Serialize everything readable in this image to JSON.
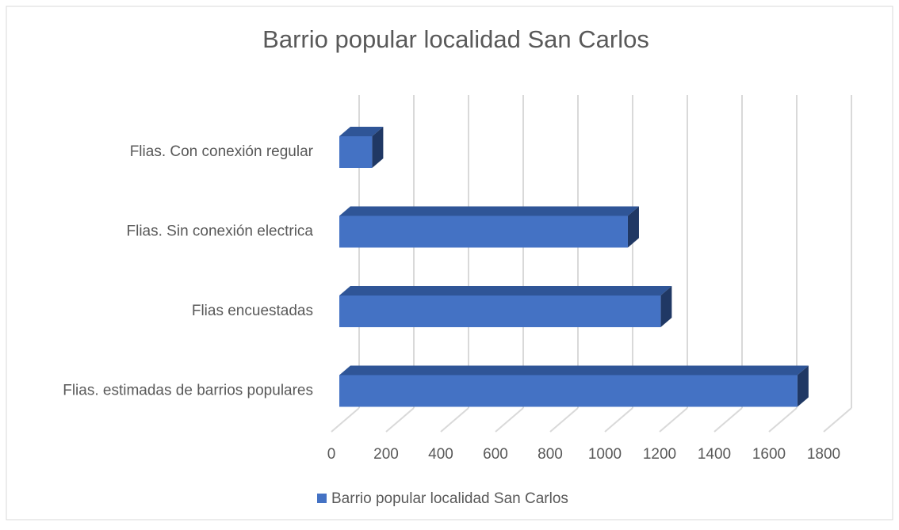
{
  "chart_data": {
    "type": "bar",
    "orientation": "horizontal",
    "title": "Barrio popular localidad San Carlos",
    "categories": [
      "Flias. Con conexión regular",
      "Flias. Sin conexión electrica",
      "Flias encuestadas",
      "Flias. estimadas de barrios populares"
    ],
    "series": [
      {
        "name": "Barrio popular localidad San Carlos",
        "color": "#4472c4",
        "values": [
          120,
          1055,
          1175,
          1675
        ]
      }
    ],
    "xlim": [
      0,
      1800
    ],
    "xticks": [
      0,
      200,
      400,
      600,
      800,
      1000,
      1200,
      1400,
      1600,
      1800
    ],
    "grid": true,
    "legend": "bottom"
  }
}
